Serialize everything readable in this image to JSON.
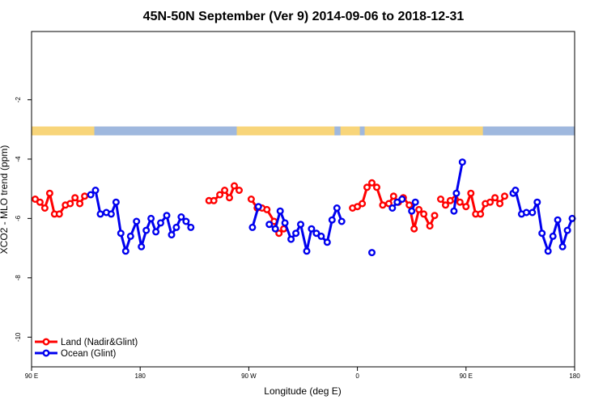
{
  "chart_data": {
    "type": "line",
    "title": "45N-50N September (Ver 9)   2014-09-06 to 2018-12-31",
    "xlabel": "Longitude (deg E)",
    "ylabel": "XCO2 - MLO trend (ppm)",
    "x_ticks": [
      {
        "pos": 90,
        "label": "90 E"
      },
      {
        "pos": 180,
        "label": "180"
      },
      {
        "pos": 270,
        "label": "90 W"
      },
      {
        "pos": 360,
        "label": "0"
      },
      {
        "pos": 450,
        "label": "90 E"
      },
      {
        "pos": 540,
        "label": "180"
      }
    ],
    "y_ticks": [
      -10,
      -8,
      -6,
      -4,
      -2
    ],
    "xlim": [
      90,
      540
    ],
    "ylim": [
      -11,
      0.3
    ],
    "land_ocean_strip": {
      "y": -3.05,
      "land_color": "#f8d57a",
      "ocean_color": "#9fb8de",
      "ocean_ranges": [
        [
          142,
          260
        ],
        [
          341,
          346
        ],
        [
          362,
          366
        ],
        [
          464,
          540
        ]
      ]
    },
    "legend": {
      "position": "bottom-left"
    },
    "series": [
      {
        "name": "Land (Nadir&Glint)",
        "color": "#ff0000",
        "segments": [
          [
            [
              93,
              -5.35
            ],
            [
              97,
              -5.45
            ],
            [
              101,
              -5.65
            ],
            [
              105,
              -5.15
            ],
            [
              109,
              -5.85
            ],
            [
              113,
              -5.85
            ],
            [
              118,
              -5.55
            ],
            [
              122,
              -5.5
            ],
            [
              126,
              -5.3
            ],
            [
              130,
              -5.5
            ],
            [
              134,
              -5.25
            ]
          ],
          [
            [
              237,
              -5.4
            ],
            [
              241,
              -5.4
            ],
            [
              246,
              -5.2
            ],
            [
              250,
              -5.05
            ],
            [
              254,
              -5.3
            ],
            [
              258,
              -4.9
            ],
            [
              262,
              -5.05
            ]
          ],
          [
            [
              272,
              -5.35
            ],
            [
              277,
              -5.65
            ],
            [
              281,
              -5.65
            ],
            [
              285,
              -5.7
            ],
            [
              291,
              -6.1
            ],
            [
              295,
              -6.5
            ],
            [
              299,
              -6.35
            ]
          ],
          [
            [
              356,
              -5.65
            ],
            [
              360,
              -5.6
            ],
            [
              364,
              -5.5
            ],
            [
              368,
              -4.95
            ],
            [
              372,
              -4.8
            ],
            [
              376,
              -4.95
            ],
            [
              381,
              -5.55
            ],
            [
              386,
              -5.5
            ],
            [
              390,
              -5.25
            ],
            [
              394,
              -5.45
            ],
            [
              398,
              -5.3
            ],
            [
              403,
              -5.55
            ],
            [
              407,
              -6.35
            ],
            [
              411,
              -5.7
            ],
            [
              415,
              -5.85
            ],
            [
              420,
              -6.25
            ],
            [
              424,
              -5.9
            ]
          ],
          [
            [
              429,
              -5.35
            ],
            [
              433,
              -5.55
            ],
            [
              437,
              -5.4
            ],
            [
              441,
              -5.35
            ],
            [
              445,
              -5.45
            ],
            [
              450,
              -5.6
            ],
            [
              454,
              -5.15
            ],
            [
              458,
              -5.85
            ],
            [
              462,
              -5.85
            ],
            [
              466,
              -5.5
            ],
            [
              470,
              -5.45
            ],
            [
              474,
              -5.3
            ],
            [
              478,
              -5.5
            ],
            [
              482,
              -5.25
            ]
          ]
        ]
      },
      {
        "name": "Ocean (Glint)",
        "color": "#0000ee",
        "segments": [
          [
            [
              139,
              -5.2
            ],
            [
              143,
              -5.05
            ],
            [
              147,
              -5.85
            ],
            [
              152,
              -5.8
            ],
            [
              156,
              -5.85
            ],
            [
              160,
              -5.45
            ],
            [
              164,
              -6.5
            ],
            [
              168,
              -7.1
            ],
            [
              172,
              -6.6
            ],
            [
              177,
              -6.1
            ],
            [
              181,
              -6.95
            ],
            [
              185,
              -6.4
            ],
            [
              189,
              -6.0
            ],
            [
              193,
              -6.45
            ],
            [
              197,
              -6.15
            ],
            [
              202,
              -5.9
            ],
            [
              206,
              -6.55
            ],
            [
              210,
              -6.3
            ],
            [
              214,
              -5.95
            ],
            [
              218,
              -6.1
            ],
            [
              222,
              -6.3
            ]
          ],
          [
            [
              273,
              -6.3
            ],
            [
              278,
              -5.6
            ]
          ],
          [
            [
              287,
              -6.2
            ],
            [
              292,
              -6.35
            ],
            [
              296,
              -5.75
            ],
            [
              300,
              -6.15
            ],
            [
              305,
              -6.7
            ],
            [
              309,
              -6.5
            ],
            [
              313,
              -6.2
            ],
            [
              318,
              -7.1
            ],
            [
              322,
              -6.35
            ],
            [
              326,
              -6.5
            ],
            [
              330,
              -6.6
            ],
            [
              335,
              -6.8
            ],
            [
              339,
              -6.05
            ],
            [
              343,
              -5.65
            ],
            [
              347,
              -6.1
            ]
          ],
          [
            [
              372,
              -7.15
            ]
          ],
          [
            [
              389,
              -5.65
            ],
            [
              393,
              -5.45
            ],
            [
              397,
              -5.35
            ]
          ],
          [
            [
              405,
              -5.75
            ],
            [
              408,
              -5.45
            ]
          ],
          [
            [
              440,
              -5.75
            ],
            [
              442,
              -5.15
            ],
            [
              447,
              -4.1
            ]
          ],
          [
            [
              489,
              -5.15
            ],
            [
              491,
              -5.05
            ],
            [
              496,
              -5.85
            ],
            [
              500,
              -5.8
            ],
            [
              505,
              -5.8
            ],
            [
              509,
              -5.45
            ],
            [
              513,
              -6.5
            ],
            [
              518,
              -7.1
            ],
            [
              522,
              -6.6
            ],
            [
              526,
              -6.05
            ],
            [
              530,
              -6.95
            ],
            [
              534,
              -6.4
            ],
            [
              538,
              -6.0
            ]
          ]
        ]
      }
    ]
  }
}
